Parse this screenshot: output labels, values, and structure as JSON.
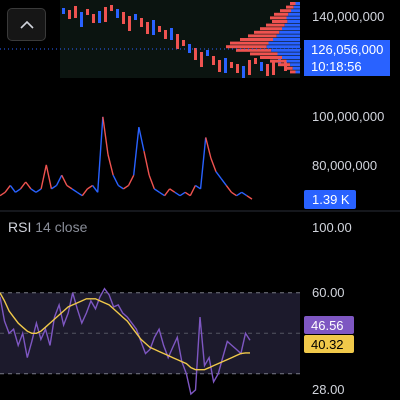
{
  "chart_data": [
    {
      "type": "line",
      "panel": "volume",
      "y_ticks": [
        "140,000,000",
        "126,056,000",
        "100,000,000",
        "80,000,000"
      ],
      "price_label": "126,056,000",
      "countdown": "10:18:56",
      "volume_label": "1.39 K",
      "series": [
        {
          "values": [
            0.3,
            0.4,
            0.6,
            0.4,
            0.5,
            0.7,
            0.5,
            0.4,
            0.5,
            1.2,
            0.5,
            0.6,
            0.9,
            0.6,
            0.5,
            0.4,
            0.3,
            0.5,
            0.6,
            0.4,
            2.6,
            1.5,
            0.9,
            0.6,
            0.5,
            0.6,
            0.9,
            2.3,
            1.6,
            0.9,
            0.5,
            0.4,
            0.3,
            0.5,
            0.4,
            0.3,
            0.4,
            0.3,
            0.6,
            0.5,
            2.0,
            1.4,
            1.0,
            0.8,
            0.6,
            0.4,
            0.3,
            0.4,
            0.3,
            0.2
          ]
        }
      ]
    },
    {
      "type": "line",
      "panel": "rsi",
      "title": "RSI",
      "subtitle": "14 close",
      "ylim": [
        20,
        100
      ],
      "y_ticks": [
        "100.00",
        "60.00",
        "28.00"
      ],
      "bands": [
        70,
        50,
        30
      ],
      "rsi_label": "46.56",
      "ma_label": "40.32",
      "series": [
        {
          "name": "RSI",
          "color": "#7e57c2",
          "values": [
            68,
            56,
            50,
            52,
            44,
            50,
            38,
            46,
            55,
            47,
            52,
            44,
            58,
            64,
            54,
            60,
            70,
            62,
            55,
            60,
            66,
            62,
            68,
            72,
            69,
            63,
            64,
            60,
            58,
            55,
            52,
            46,
            40,
            42,
            48,
            52,
            44,
            38,
            43,
            48,
            36,
            30,
            20,
            22,
            58,
            34,
            38,
            26,
            30,
            38,
            46,
            44,
            42,
            40,
            50,
            46.56
          ]
        },
        {
          "name": "MA",
          "color": "#f0c94a",
          "values": [
            70,
            66,
            61,
            58,
            55,
            53,
            51,
            50,
            50,
            51,
            53,
            55,
            57,
            59,
            61,
            63,
            64,
            65,
            66,
            67,
            67,
            67,
            66,
            65,
            64,
            62,
            60,
            58,
            56,
            53,
            50,
            47,
            45,
            43,
            42,
            41,
            40,
            39,
            38,
            37,
            36,
            35,
            33,
            32,
            32,
            32,
            33,
            34,
            35,
            36,
            37,
            38,
            39,
            40,
            40.32,
            40.32
          ]
        }
      ]
    }
  ],
  "colors": {
    "up": "#ef5350",
    "down": "#2962ff",
    "rsi": "#7e57c2",
    "ma": "#f0c94a",
    "band_fill": "#1c1a2c",
    "text": "#d1d4dc",
    "chip_blue": "#2962ff",
    "chip_purple": "#7e57c2",
    "chip_yellow": "#f0c94a"
  },
  "icons": {
    "collapse": "chevron-up-icon"
  }
}
